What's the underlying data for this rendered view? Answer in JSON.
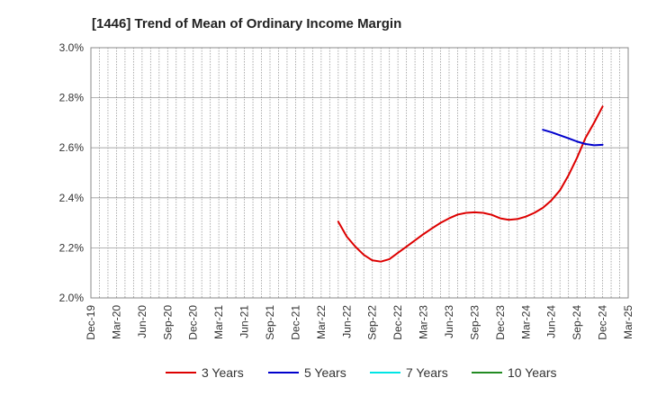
{
  "chart_data": {
    "type": "line",
    "title": "[1446]  Trend of Mean of Ordinary Income Margin",
    "xlabel": "",
    "ylabel": "",
    "ylim": [
      2.0,
      3.0
    ],
    "yticks": [
      "2.0%",
      "2.2%",
      "2.4%",
      "2.6%",
      "2.8%",
      "3.0%"
    ],
    "ytick_values": [
      2.0,
      2.2,
      2.4,
      2.6,
      2.8,
      3.0
    ],
    "categories": [
      "Dec-19",
      "Mar-20",
      "Jun-20",
      "Sep-20",
      "Dec-20",
      "Mar-21",
      "Jun-21",
      "Sep-21",
      "Dec-21",
      "Mar-22",
      "Jun-22",
      "Sep-22",
      "Dec-22",
      "Mar-23",
      "Jun-23",
      "Sep-23",
      "Dec-23",
      "Mar-24",
      "Jun-24",
      "Sep-24",
      "Dec-24",
      "Mar-25"
    ],
    "grid": true,
    "legend_position": "bottom",
    "series": [
      {
        "name": "3 Years",
        "color": "#dd0000",
        "points": [
          [
            29,
            2.305
          ],
          [
            30,
            2.245
          ],
          [
            31,
            2.205
          ],
          [
            32,
            2.172
          ],
          [
            33,
            2.15
          ],
          [
            34,
            2.145
          ],
          [
            35,
            2.155
          ],
          [
            36,
            2.18
          ],
          [
            37,
            2.205
          ],
          [
            38,
            2.23
          ],
          [
            39,
            2.255
          ],
          [
            40,
            2.278
          ],
          [
            41,
            2.3
          ],
          [
            42,
            2.318
          ],
          [
            43,
            2.333
          ],
          [
            44,
            2.34
          ],
          [
            45,
            2.342
          ],
          [
            46,
            2.34
          ],
          [
            47,
            2.332
          ],
          [
            48,
            2.318
          ],
          [
            49,
            2.312
          ],
          [
            50,
            2.315
          ],
          [
            51,
            2.325
          ],
          [
            52,
            2.34
          ],
          [
            53,
            2.36
          ],
          [
            54,
            2.39
          ],
          [
            55,
            2.43
          ],
          [
            56,
            2.49
          ],
          [
            57,
            2.56
          ],
          [
            58,
            2.64
          ],
          [
            59,
            2.7
          ],
          [
            60,
            2.765
          ]
        ]
      },
      {
        "name": "5 Years",
        "color": "#0000cc",
        "points": [
          [
            53,
            2.672
          ],
          [
            54,
            2.662
          ],
          [
            55,
            2.65
          ],
          [
            56,
            2.638
          ],
          [
            57,
            2.625
          ],
          [
            58,
            2.615
          ],
          [
            59,
            2.61
          ],
          [
            60,
            2.612
          ]
        ]
      },
      {
        "name": "7 Years",
        "color": "#00e5e5",
        "points": []
      },
      {
        "name": "10 Years",
        "color": "#228b22",
        "points": []
      }
    ]
  }
}
